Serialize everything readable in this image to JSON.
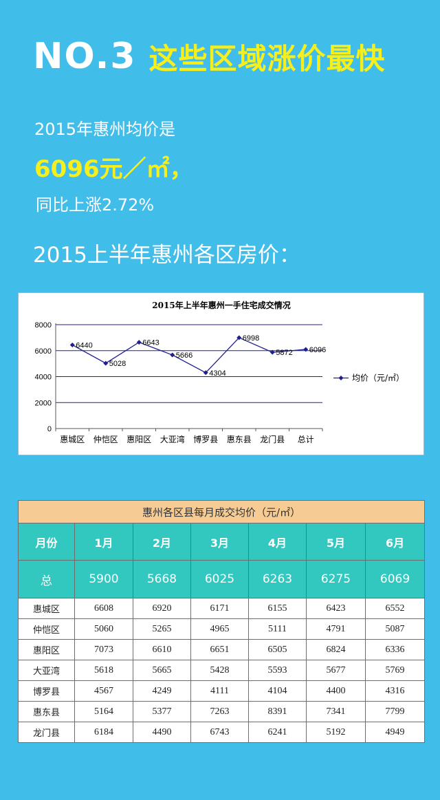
{
  "header": {
    "no_label": "NO.3",
    "headline": "这些区域涨价最快"
  },
  "intro": {
    "line1": "2015年惠州均价是",
    "price": "6096元／㎡，",
    "yoy": "同比上涨2.72%"
  },
  "subtitle": "2015上半年惠州各区房价：",
  "colors": {
    "background": "#41bdea",
    "headline": "#f5ef1d",
    "line": "#1f1f8e",
    "table_header": "#33c8bf",
    "table_caption": "#f6cc94"
  },
  "chart_data": {
    "type": "line",
    "title": "2015年上半年惠州一手住宅成交情况",
    "categories": [
      "惠城区",
      "仲恺区",
      "惠阳区",
      "大亚湾",
      "博罗县",
      "惠东县",
      "龙门县",
      "总计"
    ],
    "series": [
      {
        "name": "均价（元/㎡）",
        "values": [
          6440,
          5028,
          6643,
          5666,
          4304,
          6998,
          5872,
          6096
        ]
      }
    ],
    "ylim": [
      0,
      8000
    ],
    "yticks": [
      "0",
      "2000",
      "4000",
      "6000",
      "8000"
    ],
    "grid": true,
    "legend": "right"
  },
  "table": {
    "caption": "惠州各区县每月成交均价（元/㎡）",
    "headers": [
      "月份",
      "1月",
      "2月",
      "3月",
      "4月",
      "5月",
      "6月"
    ],
    "total": [
      "总",
      "5900",
      "5668",
      "6025",
      "6263",
      "6275",
      "6069"
    ],
    "rows": [
      [
        "惠城区",
        "6608",
        "6920",
        "6171",
        "6155",
        "6423",
        "6552"
      ],
      [
        "仲恺区",
        "5060",
        "5265",
        "4965",
        "5111",
        "4791",
        "5087"
      ],
      [
        "惠阳区",
        "7073",
        "6610",
        "6651",
        "6505",
        "6824",
        "6336"
      ],
      [
        "大亚湾",
        "5618",
        "5665",
        "5428",
        "5593",
        "5677",
        "5769"
      ],
      [
        "博罗县",
        "4567",
        "4249",
        "4111",
        "4104",
        "4400",
        "4316"
      ],
      [
        "惠东县",
        "5164",
        "5377",
        "7263",
        "8391",
        "7341",
        "7799"
      ],
      [
        "龙门县",
        "6184",
        "4490",
        "6743",
        "6241",
        "5192",
        "4949"
      ]
    ]
  }
}
